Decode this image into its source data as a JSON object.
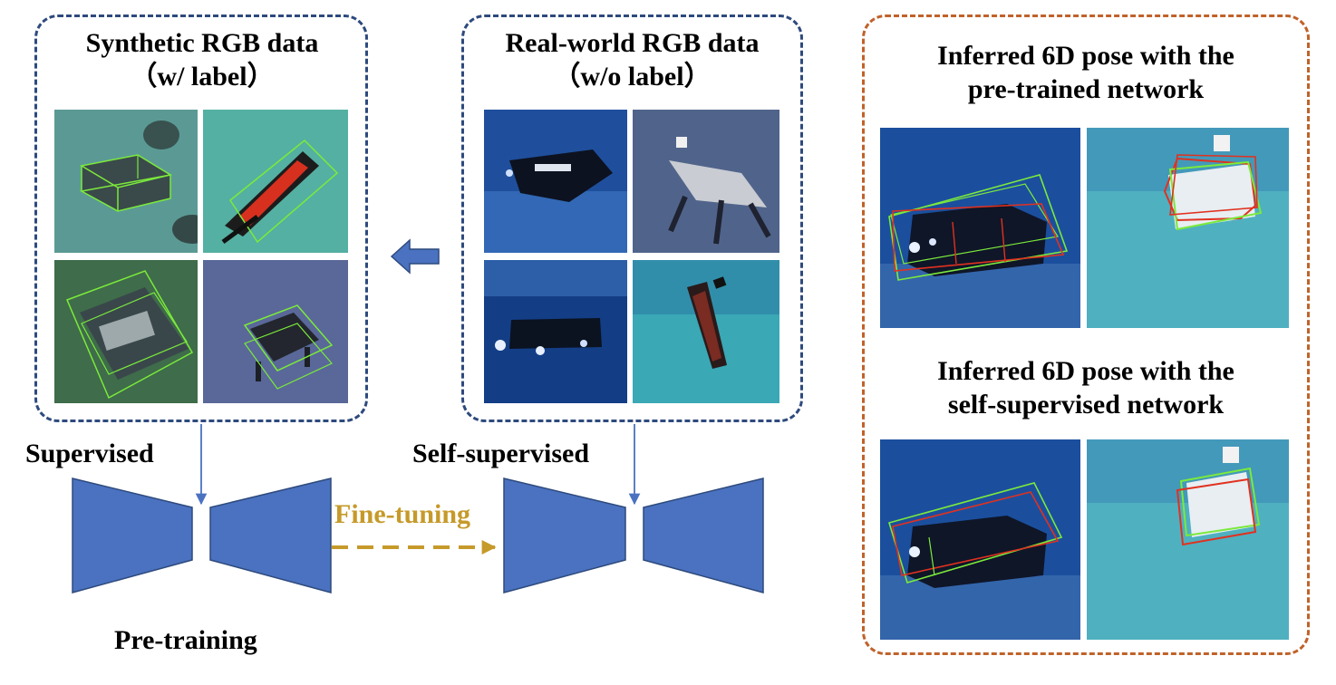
{
  "synthetic": {
    "title_line1": "Synthetic RGB data",
    "title_line2": "（w/ label）"
  },
  "real": {
    "title_line1": "Real-world RGB data",
    "title_line2": "（w/o label）"
  },
  "inferred": {
    "pretrained_line1": "Inferred 6D pose with the",
    "pretrained_line2": "pre-trained network",
    "selfsup_line1": "Inferred 6D pose with the",
    "selfsup_line2": "self-supervised network"
  },
  "labels": {
    "supervised": "Supervised",
    "self_supervised": "Self-supervised",
    "fine_tuning": "Fine-tuning",
    "pre_training": "Pre-training"
  },
  "colors": {
    "blue_dash": "#2e4a7d",
    "orange_dash": "#c0622a",
    "network_blue": "#4a72c0",
    "arrow_gold": "#c69a2a",
    "bbox_green": "#7bea3c",
    "bbox_red": "#e1311f"
  }
}
